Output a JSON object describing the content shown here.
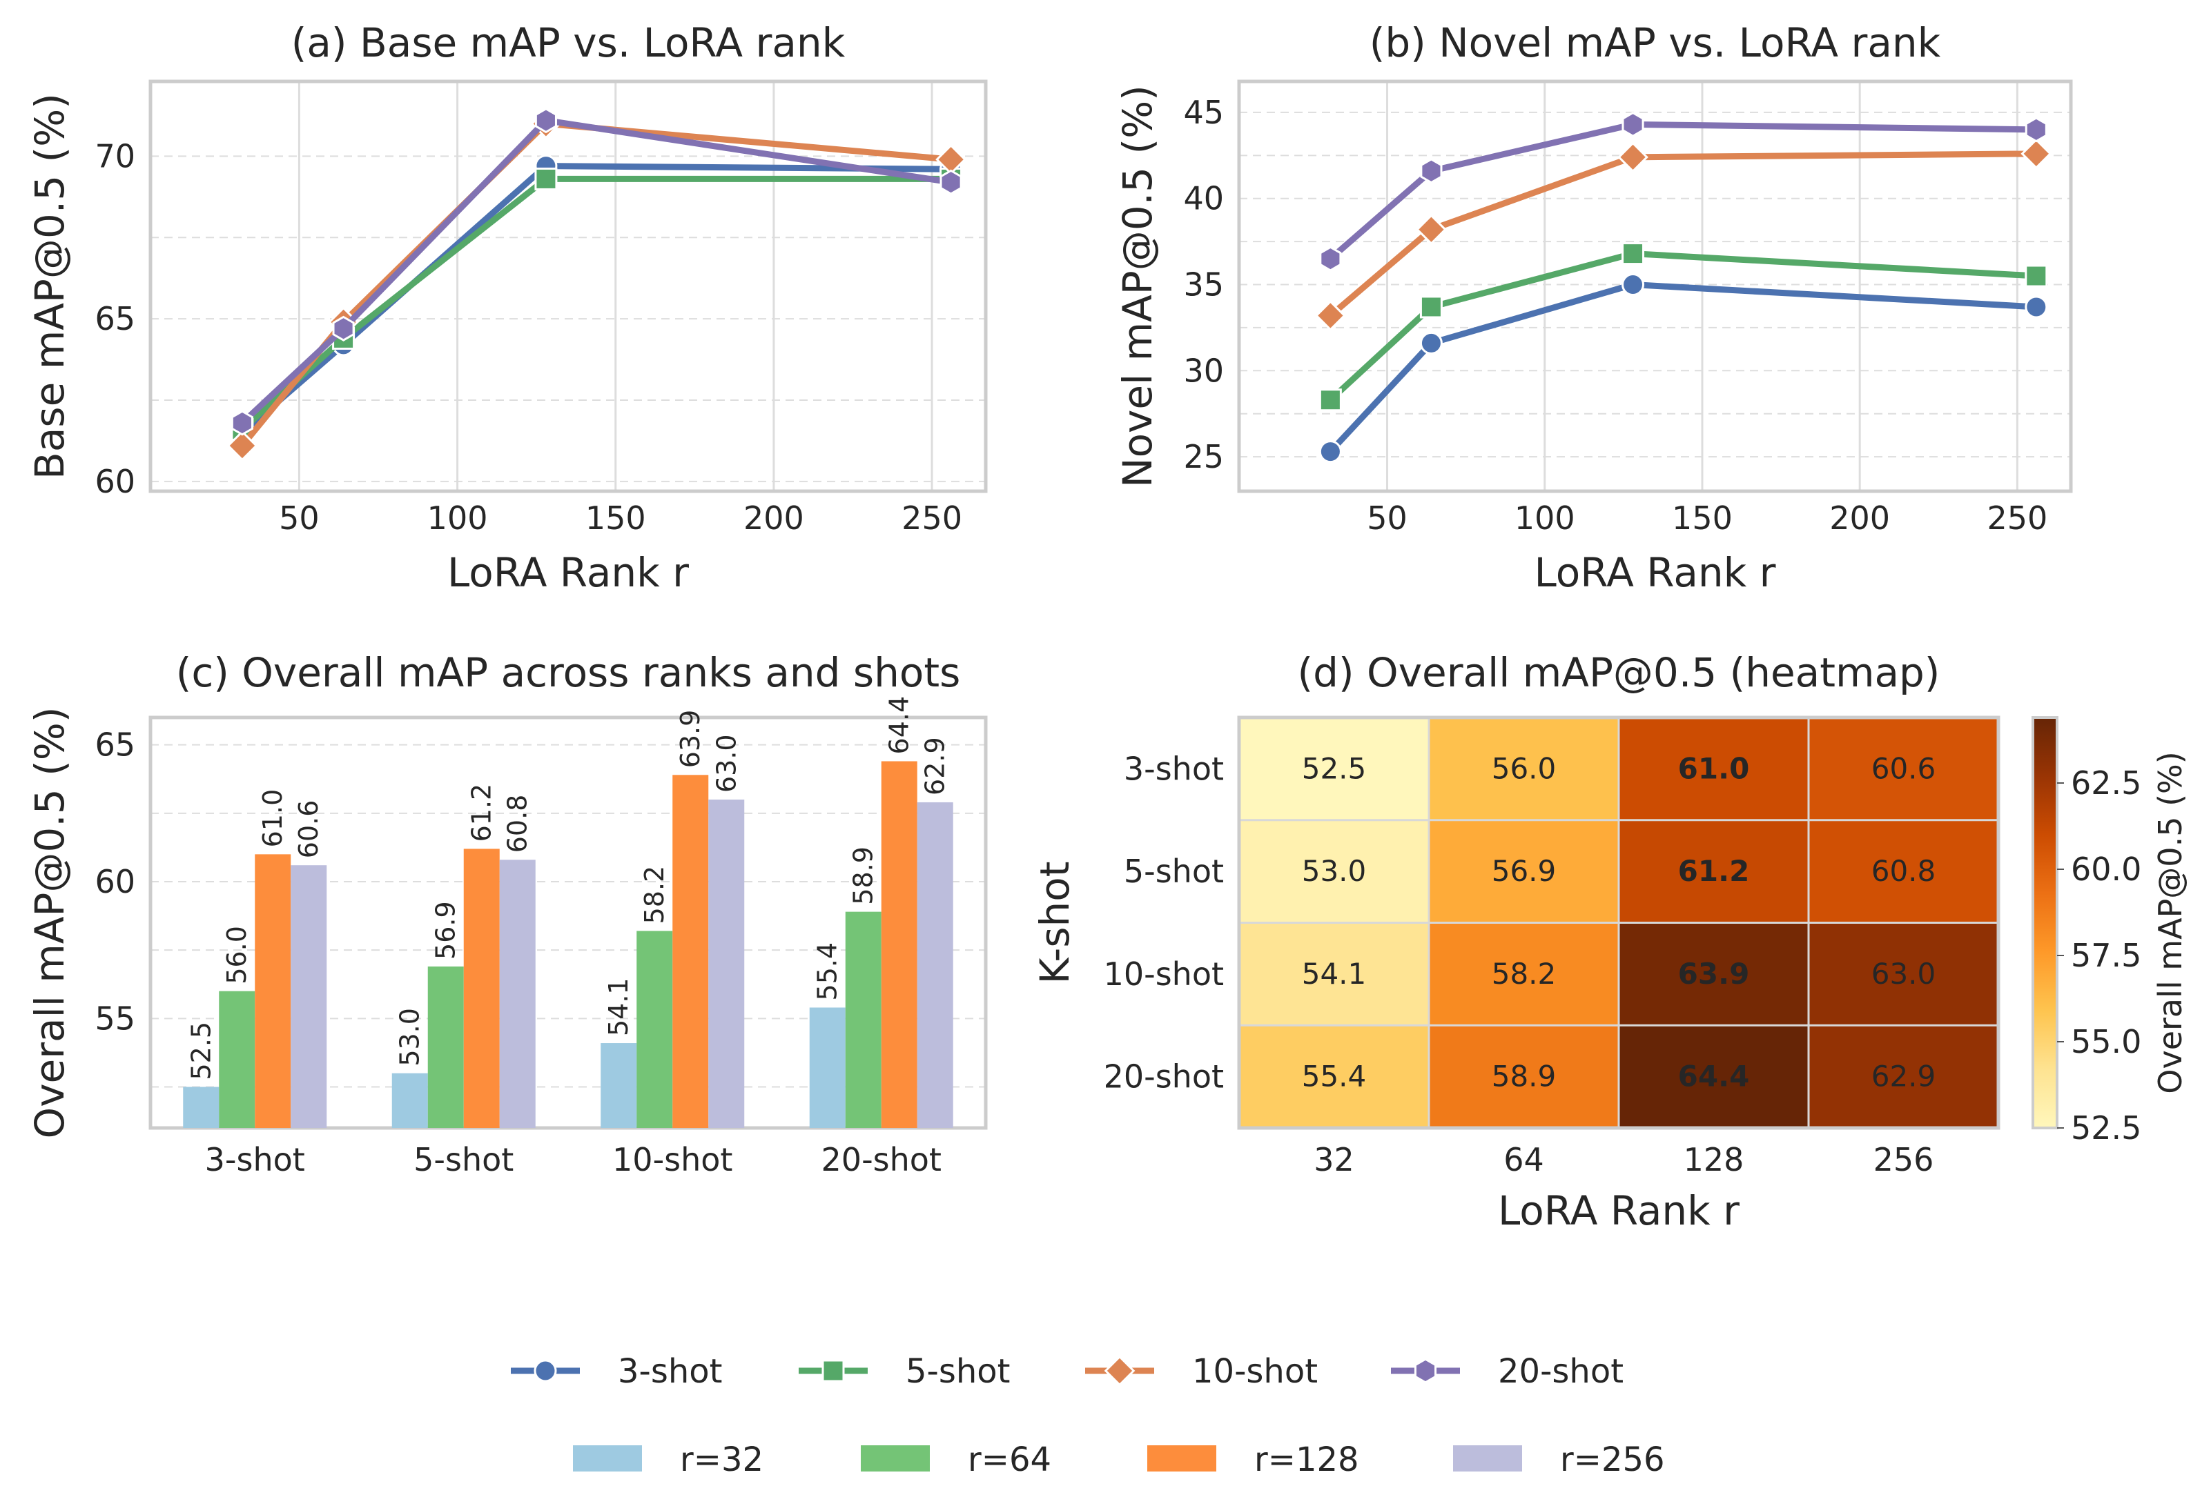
{
  "colors": {
    "shot_3": "#4c72b0",
    "shot_5": "#55a868",
    "shot_10": "#dd8452",
    "shot_20": "#8172b2",
    "r_32": "#9ecae1",
    "r_64": "#74c476",
    "r_128": "#fd8d3c",
    "r_256": "#bcbddc",
    "grid": "#dddddd",
    "axis": "#cccccc"
  },
  "chart_data": [
    {
      "type": "line",
      "title": "(a) Base mAP vs. LoRA rank",
      "xlabel": "LoRA Rank r",
      "ylabel": "Base mAP@0.5 (%)",
      "x": [
        32,
        64,
        128,
        256
      ],
      "xlim": [
        3,
        267
      ],
      "ylim": [
        59.7,
        72.3
      ],
      "xticks": [
        50,
        100,
        150,
        200,
        250
      ],
      "yticks": [
        60,
        65,
        70
      ],
      "series": [
        {
          "name": "3-shot",
          "values": [
            61.5,
            64.2,
            69.7,
            69.6
          ]
        },
        {
          "name": "5-shot",
          "values": [
            61.6,
            64.4,
            69.3,
            69.3
          ]
        },
        {
          "name": "10-shot",
          "values": [
            61.1,
            64.9,
            71.0,
            69.9
          ]
        },
        {
          "name": "20-shot",
          "values": [
            61.8,
            64.7,
            71.1,
            69.2
          ]
        }
      ]
    },
    {
      "type": "line",
      "title": "(b) Novel mAP vs. LoRA rank",
      "xlabel": "LoRA Rank r",
      "ylabel": "Novel mAP@0.5 (%)",
      "x": [
        32,
        64,
        128,
        256
      ],
      "xlim": [
        3,
        267
      ],
      "ylim": [
        23.0,
        46.8
      ],
      "xticks": [
        50,
        100,
        150,
        200,
        250
      ],
      "yticks": [
        25,
        30,
        35,
        40,
        45
      ],
      "series": [
        {
          "name": "3-shot",
          "values": [
            25.3,
            31.6,
            35.0,
            33.7
          ]
        },
        {
          "name": "5-shot",
          "values": [
            28.3,
            33.7,
            36.8,
            35.5
          ]
        },
        {
          "name": "10-shot",
          "values": [
            33.2,
            38.2,
            42.4,
            42.6
          ]
        },
        {
          "name": "20-shot",
          "values": [
            36.5,
            41.6,
            44.3,
            44.0
          ]
        }
      ]
    },
    {
      "type": "bar",
      "title": "(c) Overall mAP across ranks and shots",
      "xlabel": "",
      "ylabel": "Overall mAP@0.5 (%)",
      "categories": [
        "3-shot",
        "5-shot",
        "10-shot",
        "20-shot"
      ],
      "ylim": [
        51,
        66
      ],
      "yticks": [
        55,
        60,
        65
      ],
      "series": [
        {
          "name": "r=32",
          "values": [
            52.5,
            53.0,
            54.1,
            55.4
          ],
          "labels": [
            "52.5",
            "53.0",
            "54.1",
            "55.4"
          ]
        },
        {
          "name": "r=64",
          "values": [
            56.0,
            56.9,
            58.2,
            58.9
          ],
          "labels": [
            "56.0",
            "56.9",
            "58.2",
            "58.9"
          ]
        },
        {
          "name": "r=128",
          "values": [
            61.0,
            61.2,
            63.9,
            64.4
          ],
          "labels": [
            "61.0",
            "61.2",
            "63.9",
            "64.4"
          ]
        },
        {
          "name": "r=256",
          "values": [
            60.6,
            60.8,
            63.0,
            62.9
          ],
          "labels": [
            "60.6",
            "60.8",
            "63.0",
            "62.9"
          ]
        }
      ]
    },
    {
      "type": "heatmap",
      "title": "(d) Overall mAP@0.5 (heatmap)",
      "xlabel": "LoRA Rank r",
      "ylabel": "K-shot",
      "x_categories": [
        "32",
        "64",
        "128",
        "256"
      ],
      "y_categories": [
        "3-shot",
        "5-shot",
        "10-shot",
        "20-shot"
      ],
      "values": [
        [
          52.5,
          56.0,
          61.0,
          60.6
        ],
        [
          53.0,
          56.9,
          61.2,
          60.8
        ],
        [
          54.1,
          58.2,
          63.9,
          63.0
        ],
        [
          55.4,
          58.9,
          64.4,
          62.9
        ]
      ],
      "labels": [
        [
          "52.5",
          "56.0",
          "61.0",
          "60.6"
        ],
        [
          "53.0",
          "56.9",
          "61.2",
          "60.8"
        ],
        [
          "54.1",
          "58.2",
          "63.9",
          "63.0"
        ],
        [
          "55.4",
          "58.9",
          "64.4",
          "62.9"
        ]
      ],
      "bold_column": 2,
      "colorbar_label": "Overall mAP@0.5 (%)",
      "vmin": 52.5,
      "vmax": 64.4,
      "colorbar_ticks": [
        "52.5",
        "55.0",
        "57.5",
        "60.0",
        "62.5"
      ],
      "colorbar_tick_values": [
        52.5,
        55.0,
        57.5,
        60.0,
        62.5
      ]
    }
  ],
  "legend": {
    "lines": [
      "3-shot",
      "5-shot",
      "10-shot",
      "20-shot"
    ],
    "bars": [
      "r=32",
      "r=64",
      "r=128",
      "r=256"
    ]
  }
}
